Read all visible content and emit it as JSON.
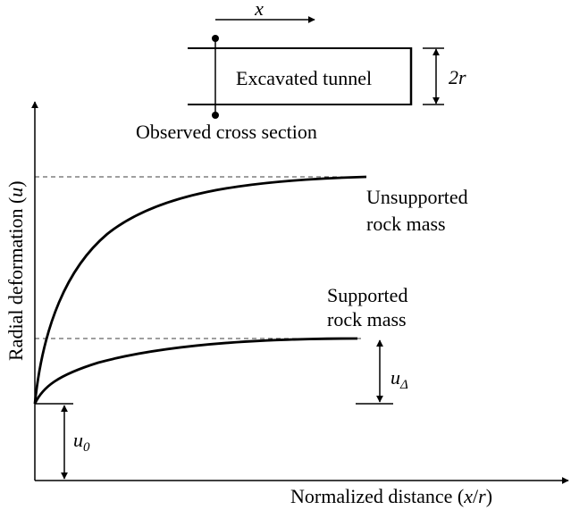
{
  "tunnel": {
    "label": "Excavated tunnel",
    "direction_label": "x",
    "diameter_label": "2r",
    "cross_section_label": "Observed cross section"
  },
  "axes": {
    "ylabel": {
      "prefix": "Radial deformation (",
      "var": "u",
      "suffix": ")"
    },
    "xlabel": {
      "prefix": "Normalized distance (",
      "var1": "x",
      "sep": "/",
      "var2": "r",
      "suffix": ")"
    }
  },
  "curves": {
    "unsupported": {
      "line1": "Unsupported",
      "line2": "rock mass"
    },
    "supported": {
      "line1": "Supported",
      "line2": "rock mass"
    }
  },
  "markers": {
    "u0": {
      "base": "u",
      "sub": "0"
    },
    "udelta": {
      "base": "u",
      "sub": "Δ"
    }
  }
}
